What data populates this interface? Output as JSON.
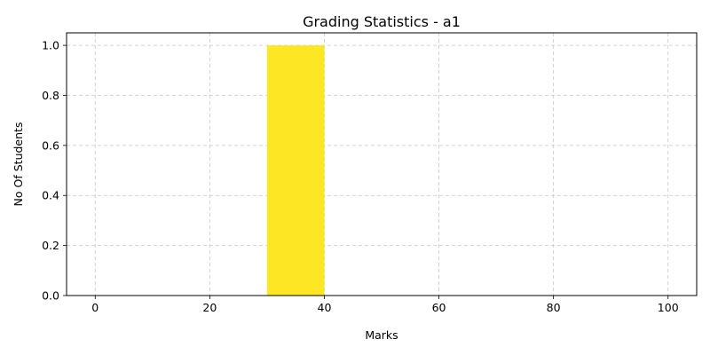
{
  "chart_data": {
    "type": "bar",
    "title": "Grading Statistics - a1",
    "xlabel": "Marks",
    "ylabel": "No Of Students",
    "xlim": [
      -5,
      105
    ],
    "ylim": [
      0,
      1.05
    ],
    "xticks": [
      0,
      20,
      40,
      60,
      80,
      100
    ],
    "xtick_labels": [
      "0",
      "20",
      "40",
      "60",
      "80",
      "100"
    ],
    "yticks": [
      0.0,
      0.2,
      0.4,
      0.6,
      0.8,
      1.0
    ],
    "ytick_labels": [
      "0.0",
      "0.2",
      "0.4",
      "0.6",
      "0.8",
      "1.0"
    ],
    "grid": true,
    "bins": [
      {
        "x0": 30,
        "x1": 40,
        "value": 1.0
      }
    ],
    "bar_color": "#fde725"
  }
}
